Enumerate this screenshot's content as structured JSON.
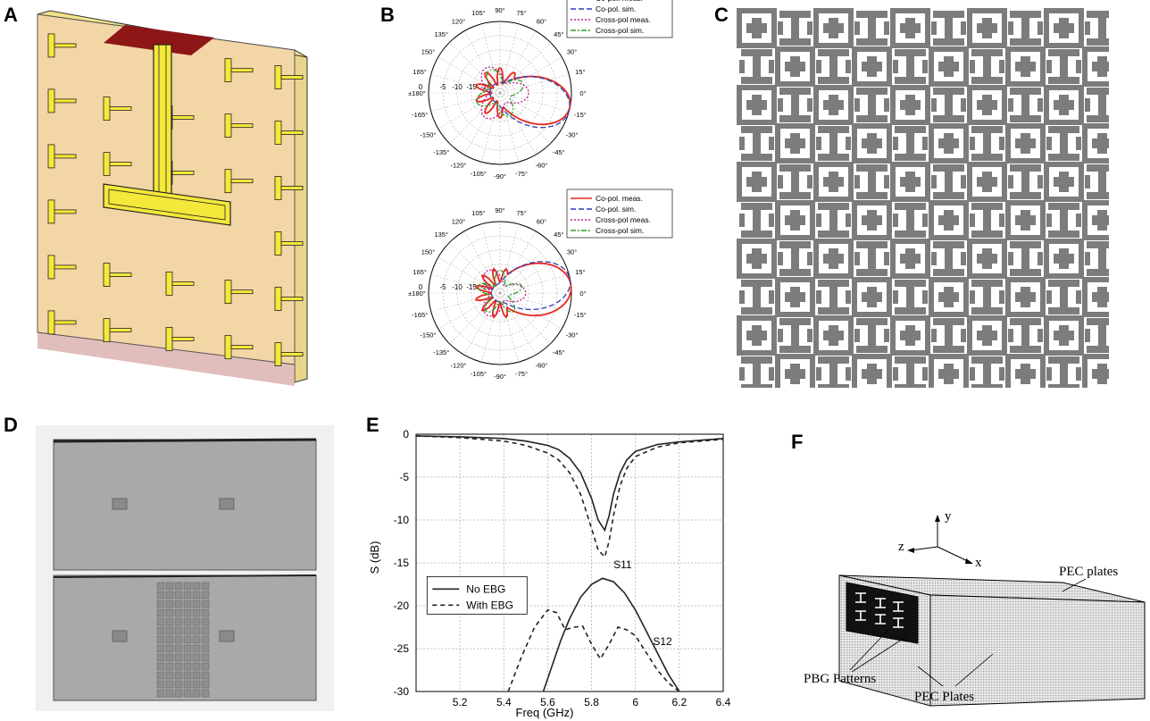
{
  "panels": {
    "a": {
      "letter": "A"
    },
    "b": {
      "letter": "B",
      "angle_labels": [
        "90°",
        "75°",
        "60°",
        "45°",
        "30°",
        "15°",
        "0°",
        "-15°",
        "-30°",
        "-45°",
        "-60°",
        "-75°",
        "-90°",
        "-105°",
        "-120°",
        "-135°",
        "-150°",
        "-165°",
        "±180°",
        "165°",
        "150°",
        "135°",
        "120°",
        "105°"
      ],
      "radial_labels": [
        "-5",
        "-10",
        "-15",
        "-20"
      ],
      "radial_zero": "0",
      "legend": [
        "Co-pol. meas.",
        "Co-pol. sim.",
        "Cross-pol meas.",
        "Cross-pol sim."
      ],
      "legend_colors": [
        "#e8261c",
        "#2f3fb5",
        "#c0188c",
        "#2aa22a"
      ]
    },
    "c": {
      "letter": "C"
    },
    "d": {
      "letter": "D"
    },
    "e": {
      "letter": "E"
    },
    "f": {
      "letter": "F",
      "axis_y": "y",
      "axis_z": "z",
      "axis_x": "x",
      "label_pec_plates_top": "PEC plates",
      "label_pbg": "PBG Patterns",
      "label_pec_plates_bottom": "PEC Plates"
    }
  },
  "chart_data": {
    "type": "line",
    "xlabel": "Freq (GHz)",
    "ylabel": "S (dB)",
    "xlim": [
      5.0,
      6.4
    ],
    "ylim": [
      -30,
      0
    ],
    "x_ticks": [
      "5.2",
      "5.4",
      "5.6",
      "5.8",
      "6",
      "6.2",
      "6.4"
    ],
    "y_ticks": [
      "0",
      "-5",
      "-10",
      "-15",
      "-20",
      "-25",
      "-30"
    ],
    "grid": true,
    "legend_position": "lower-left",
    "annotations": [
      "S11",
      "S12"
    ],
    "series": [
      {
        "name": "No EBG",
        "curve": "S11",
        "style": "solid",
        "x": [
          5.0,
          5.2,
          5.4,
          5.5,
          5.6,
          5.65,
          5.7,
          5.75,
          5.8,
          5.83,
          5.86,
          5.88,
          5.9,
          5.93,
          5.96,
          6.0,
          6.1,
          6.2,
          6.3,
          6.4
        ],
        "y": [
          -0.2,
          -0.3,
          -0.5,
          -0.8,
          -1.3,
          -1.8,
          -2.8,
          -4.5,
          -7.5,
          -10.0,
          -11.2,
          -9.5,
          -7.0,
          -4.5,
          -3.0,
          -2.0,
          -1.2,
          -0.9,
          -0.7,
          -0.5
        ]
      },
      {
        "name": "With EBG",
        "curve": "S11",
        "style": "dashed",
        "x": [
          5.0,
          5.2,
          5.4,
          5.5,
          5.6,
          5.65,
          5.7,
          5.75,
          5.8,
          5.83,
          5.86,
          5.88,
          5.9,
          5.93,
          5.96,
          6.0,
          6.1,
          6.2,
          6.3,
          6.4
        ],
        "y": [
          -0.2,
          -0.4,
          -0.8,
          -1.3,
          -2.2,
          -3.0,
          -4.5,
          -7.0,
          -11.0,
          -13.5,
          -14.3,
          -12.5,
          -9.5,
          -6.0,
          -4.0,
          -2.6,
          -1.5,
          -1.0,
          -0.8,
          -0.6
        ]
      },
      {
        "name": "No EBG",
        "curve": "S12",
        "style": "solid",
        "x": [
          5.58,
          5.62,
          5.66,
          5.7,
          5.75,
          5.8,
          5.85,
          5.9,
          5.95,
          6.0,
          6.05,
          6.1,
          6.15,
          6.2
        ],
        "y": [
          -30.0,
          -27.0,
          -24.0,
          -21.5,
          -19.0,
          -17.5,
          -16.8,
          -17.2,
          -18.5,
          -20.5,
          -23.0,
          -25.5,
          -28.0,
          -30.0
        ]
      },
      {
        "name": "With EBG",
        "curve": "S12",
        "style": "dashed",
        "x": [
          5.42,
          5.48,
          5.54,
          5.6,
          5.64,
          5.68,
          5.72,
          5.76,
          5.8,
          5.84,
          5.88,
          5.92,
          5.96,
          6.0,
          6.05,
          6.1,
          6.15,
          6.2
        ],
        "y": [
          -30.0,
          -26.0,
          -22.5,
          -20.5,
          -20.8,
          -22.8,
          -22.5,
          -22.4,
          -24.5,
          -26.2,
          -24.5,
          -22.5,
          -22.8,
          -23.5,
          -25.5,
          -27.5,
          -29.0,
          -30.0
        ]
      }
    ]
  }
}
